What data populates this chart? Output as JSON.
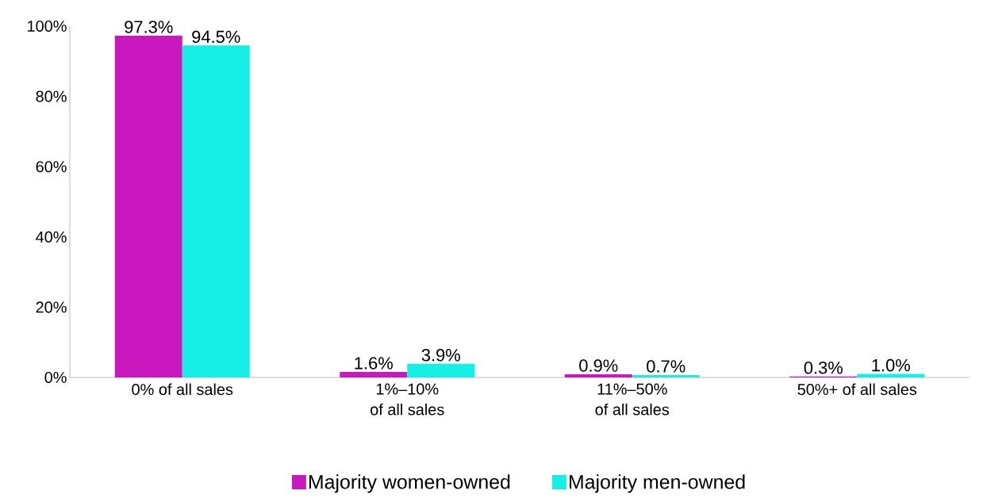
{
  "chart_data": {
    "type": "bar",
    "categories": [
      "0% of all sales",
      "1%–10% of all sales",
      "11%–50% of all sales",
      "50%+ of all sales"
    ],
    "series": [
      {
        "name": "Majority women-owned",
        "color": "#c918bd",
        "values": [
          97.3,
          1.6,
          0.9,
          0.3
        ],
        "value_labels": [
          "97.3%",
          "1.6%",
          "0.9%",
          "0.3%"
        ]
      },
      {
        "name": "Majority men-owned",
        "color": "#15efe6",
        "values": [
          94.5,
          3.9,
          0.7,
          1.0
        ],
        "value_labels": [
          "94.5%",
          "3.9%",
          "0.7%",
          "1.0%"
        ]
      }
    ],
    "ylim": [
      0,
      100
    ],
    "yticks": [
      {
        "value": 0,
        "label": "0%"
      },
      {
        "value": 20,
        "label": "20%"
      },
      {
        "value": 40,
        "label": "40%"
      },
      {
        "value": 60,
        "label": "60%"
      },
      {
        "value": 80,
        "label": "80%"
      },
      {
        "value": 100,
        "label": "100%"
      }
    ],
    "legend": "bottom",
    "grid": false
  }
}
